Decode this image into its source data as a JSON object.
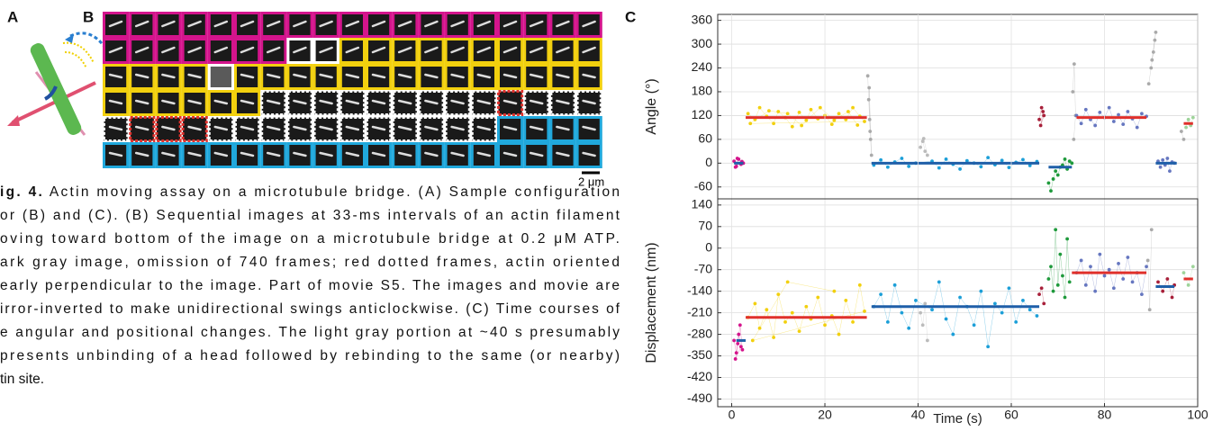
{
  "panel_a": {
    "label": "A"
  },
  "panel_b": {
    "label": "B",
    "scale_bar": "2 μm"
  },
  "panel_c": {
    "label": "C"
  },
  "caption": {
    "label": "ig. 4.",
    "lines": [
      " Actin moving assay on a microtubule bridge. (A) Sample configuration",
      "or (B) and (C). (B) Sequential images at 33-ms intervals of an actin filament",
      "oving toward bottom of the image on a microtubule bridge at 0.2 μM ATP.",
      "ark gray image, omission of 740 frames; red dotted frames, actin oriented",
      "early perpendicular to the image. Part of movie S5. The images and movie are",
      "irror-inverted to make unidirectional swings anticlockwise. (C) Time courses of",
      "e angular and positional changes. The light gray portion at ~40 s presumably",
      "presents unbinding of a head followed by rebinding to the same (or nearby)",
      "tin site."
    ]
  },
  "chart_data": [
    {
      "type": "scatter",
      "ylabel": "Angle (°)",
      "xlim": [
        -3,
        100
      ],
      "ylim": [
        -90,
        375
      ],
      "yticks": [
        360,
        300,
        240,
        180,
        120,
        60,
        0,
        -60
      ],
      "grid": true,
      "series": [
        {
          "color": "#d4148c",
          "x": [
            0.5,
            1,
            1.5,
            2,
            2.5,
            1.2,
            0.8,
            2.2
          ],
          "values": [
            5,
            -8,
            10,
            -3,
            0,
            12,
            -10,
            4
          ]
        },
        {
          "color": "#f2d00e",
          "x": [
            3.5,
            5,
            6,
            7.5,
            9,
            10,
            11.5,
            13,
            14.5,
            16,
            17,
            18.5,
            20,
            21.5,
            23,
            24.5,
            26,
            27.5,
            28.5,
            4,
            8,
            12,
            15,
            19,
            22,
            25,
            27
          ],
          "values": [
            125,
            110,
            140,
            118,
            100,
            130,
            115,
            92,
            128,
            108,
            135,
            112,
            120,
            98,
            125,
            110,
            140,
            118,
            105,
            100,
            132,
            125,
            95,
            140,
            108,
            130,
            96
          ]
        },
        {
          "color": "#aaaaaa",
          "x": [
            29.2,
            29.4,
            29.6,
            29.8,
            30,
            29.5,
            29.7
          ],
          "values": [
            220,
            160,
            110,
            60,
            20,
            190,
            80
          ]
        },
        {
          "color": "#1c9fd8",
          "x": [
            30.5,
            32,
            33.5,
            35,
            36.5,
            38,
            39.5,
            43,
            44.5,
            46,
            47.5,
            49,
            50.5,
            52,
            53.5,
            55,
            56.5,
            58,
            59.5,
            61,
            62.5,
            64,
            65.5
          ],
          "values": [
            -5,
            8,
            -10,
            3,
            12,
            -8,
            0,
            5,
            -12,
            10,
            -3,
            -15,
            6,
            0,
            -9,
            14,
            -4,
            7,
            -11,
            2,
            9,
            -6,
            4
          ]
        },
        {
          "color": "#bbbbbb",
          "x": [
            40.5,
            41,
            41.5,
            42,
            41.2
          ],
          "values": [
            40,
            55,
            30,
            20,
            62
          ]
        },
        {
          "color": "#a8203a",
          "x": [
            66,
            66.5,
            67,
            66.3,
            66.8
          ],
          "values": [
            110,
            140,
            120,
            95,
            130
          ]
        },
        {
          "color": "#1f9a3c",
          "x": [
            68,
            68.5,
            69,
            69.5,
            70,
            70.5,
            71,
            71.5,
            72,
            72.5,
            73
          ],
          "values": [
            -50,
            -70,
            -40,
            -20,
            -30,
            -10,
            -5,
            10,
            -15,
            5,
            0
          ]
        },
        {
          "color": "#aaaaaa",
          "x": [
            73.2,
            73.5,
            73.8,
            73.4
          ],
          "values": [
            180,
            250,
            120,
            60
          ]
        },
        {
          "color": "#6677c0",
          "x": [
            74,
            75,
            76,
            77,
            78,
            79,
            80,
            81,
            82,
            83,
            84,
            85,
            86,
            87,
            88,
            89
          ],
          "values": [
            120,
            100,
            135,
            110,
            95,
            128,
            115,
            140,
            105,
            122,
            98,
            130,
            112,
            90,
            125,
            118
          ]
        },
        {
          "color": "#aaaaaa",
          "x": [
            89.5,
            90,
            90.5,
            91,
            90.2,
            90.8
          ],
          "values": [
            200,
            240,
            280,
            330,
            260,
            310
          ]
        },
        {
          "color": "#6677c0",
          "x": [
            91.5,
            92,
            92.5,
            93,
            93.5,
            94,
            94.5,
            95
          ],
          "values": [
            5,
            -10,
            8,
            -5,
            12,
            -20,
            3,
            0
          ]
        },
        {
          "color": "#aaaaaa",
          "x": [
            96.5,
            97
          ],
          "values": [
            80,
            60
          ]
        },
        {
          "color": "#9ed49a",
          "x": [
            97.5,
            98,
            98.5,
            99
          ],
          "values": [
            90,
            110,
            95,
            115
          ]
        }
      ],
      "mean_lines": [
        {
          "color": "#1f5fa8",
          "x": [
            0.5,
            2.5
          ],
          "value": 0
        },
        {
          "color": "#e0302b",
          "x": [
            3,
            29
          ],
          "value": 115
        },
        {
          "color": "#1f5fa8",
          "x": [
            30,
            66
          ],
          "value": 0
        },
        {
          "color": "#1f5fa8",
          "x": [
            68,
            73
          ],
          "value": -10
        },
        {
          "color": "#e0302b",
          "x": [
            74,
            89
          ],
          "value": 115
        },
        {
          "color": "#1f5fa8",
          "x": [
            91,
            95.5
          ],
          "value": 0
        },
        {
          "color": "#e0302b",
          "x": [
            97,
            99
          ],
          "value": 100
        }
      ]
    },
    {
      "type": "scatter",
      "ylabel": "Displacement (nm)",
      "xlabel": "Time (s)",
      "xlim": [
        -3,
        100
      ],
      "ylim": [
        -515,
        160
      ],
      "xticks": [
        0,
        20,
        40,
        60,
        80,
        100
      ],
      "yticks": [
        140,
        70,
        0,
        -70,
        -140,
        -210,
        -280,
        -350,
        -420,
        -490
      ],
      "grid": true,
      "series": [
        {
          "color": "#d4148c",
          "x": [
            0.5,
            1,
            1.5,
            2,
            0.8,
            1.3,
            1.8,
            2.3
          ],
          "values": [
            -300,
            -340,
            -280,
            -320,
            -360,
            -310,
            -250,
            -330
          ]
        },
        {
          "color": "#f2d00e",
          "x": [
            3.5,
            5,
            6,
            7.5,
            9,
            10,
            11.5,
            13,
            14.5,
            16,
            17,
            18.5,
            20,
            21.5,
            23,
            24.5,
            26,
            27.5,
            28.5,
            4.5,
            12,
            22
          ],
          "values": [
            -225,
            -180,
            -260,
            -200,
            -290,
            -150,
            -240,
            -210,
            -270,
            -190,
            -230,
            -160,
            -250,
            -220,
            -280,
            -170,
            -240,
            -120,
            -205,
            -300,
            -110,
            -140
          ]
        },
        {
          "color": "#1c9fd8",
          "x": [
            30.5,
            32,
            33.5,
            35,
            36.5,
            38,
            39.5,
            43,
            44.5,
            46,
            47.5,
            49,
            50.5,
            52,
            53.5,
            55,
            56.5,
            58,
            59.5,
            61,
            62.5,
            64,
            65.5
          ],
          "values": [
            -190,
            -150,
            -240,
            -120,
            -210,
            -260,
            -170,
            -200,
            -110,
            -230,
            -280,
            -160,
            -190,
            -250,
            -140,
            -320,
            -180,
            -210,
            -130,
            -240,
            -170,
            -200,
            -220
          ]
        },
        {
          "color": "#bbbbbb",
          "x": [
            40.5,
            41,
            41.5,
            42
          ],
          "values": [
            -210,
            -250,
            -180,
            -300
          ]
        },
        {
          "color": "#a8203a",
          "x": [
            66,
            66.5,
            67
          ],
          "values": [
            -150,
            -130,
            -180
          ]
        },
        {
          "color": "#1f9a3c",
          "x": [
            68,
            68.5,
            69,
            69.5,
            70,
            70.5,
            71,
            71.5,
            72,
            72.5
          ],
          "values": [
            -100,
            -60,
            -140,
            60,
            -120,
            -20,
            -90,
            -160,
            30,
            -110
          ]
        },
        {
          "color": "#6677c0",
          "x": [
            74,
            75,
            76,
            77,
            78,
            79,
            80,
            81,
            82,
            83,
            84,
            85,
            86,
            87,
            88,
            89
          ],
          "values": [
            -80,
            -40,
            -120,
            -60,
            -140,
            -20,
            -90,
            -70,
            -130,
            -50,
            -100,
            -30,
            -110,
            -80,
            -150,
            -60
          ]
        },
        {
          "color": "#aaaaaa",
          "x": [
            89.3,
            89.7,
            90.1
          ],
          "values": [
            -40,
            -200,
            60
          ]
        },
        {
          "color": "#a8203a",
          "x": [
            91.5,
            92.5,
            93.5,
            94.5,
            95
          ],
          "values": [
            -110,
            -140,
            -100,
            -160,
            -120
          ]
        },
        {
          "color": "#9ed49a",
          "x": [
            97,
            98,
            99
          ],
          "values": [
            -80,
            -120,
            -60
          ]
        }
      ],
      "mean_lines": [
        {
          "color": "#1f5fa8",
          "x": [
            1,
            3
          ],
          "value": -300
        },
        {
          "color": "#e0302b",
          "x": [
            3,
            29
          ],
          "value": -225
        },
        {
          "color": "#1f5fa8",
          "x": [
            30,
            66
          ],
          "value": -190
        },
        {
          "color": "#e0302b",
          "x": [
            73,
            89
          ],
          "value": -80
        },
        {
          "color": "#1f5fa8",
          "x": [
            91,
            95
          ],
          "value": -125
        },
        {
          "color": "#e0302b",
          "x": [
            97,
            99
          ],
          "value": -100
        }
      ]
    }
  ]
}
